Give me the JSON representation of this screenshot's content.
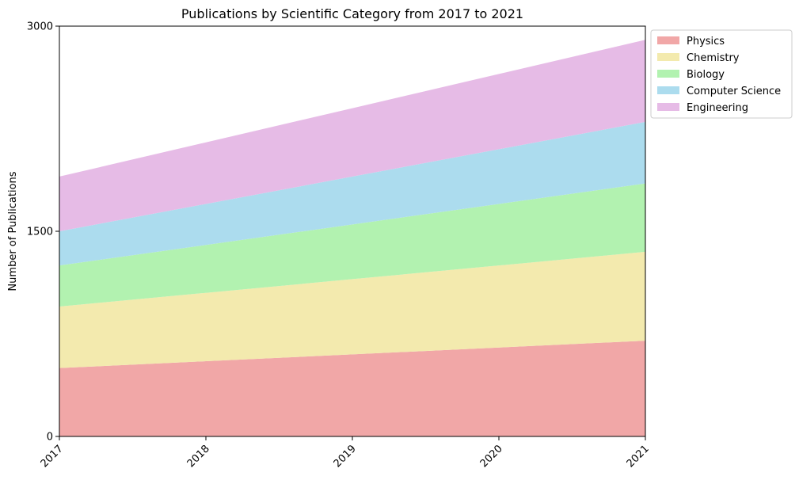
{
  "chart_data": {
    "type": "area",
    "stacked": true,
    "title": "Publications by Scientific Category from 2017 to 2021",
    "xlabel": "",
    "ylabel": "Number of Publications",
    "x": [
      "2017",
      "2018",
      "2019",
      "2020",
      "2021"
    ],
    "ylim": [
      0,
      3000
    ],
    "yticks": [
      "0",
      "1500",
      "3000"
    ],
    "grid": false,
    "legend_position": "upper right, outside plot",
    "series": [
      {
        "name": "Physics",
        "values": [
          500,
          550,
          600,
          650,
          700
        ],
        "color": "#f1a7a7"
      },
      {
        "name": "Chemistry",
        "values": [
          450,
          500,
          550,
          600,
          650
        ],
        "color": "#f3eaae"
      },
      {
        "name": "Biology",
        "values": [
          300,
          350,
          400,
          450,
          500
        ],
        "color": "#b2f2b0"
      },
      {
        "name": "Computer Science",
        "values": [
          250,
          300,
          350,
          400,
          450
        ],
        "color": "#acdcee"
      },
      {
        "name": "Engineering",
        "values": [
          400,
          450,
          500,
          550,
          600
        ],
        "color": "#e6bbe6"
      }
    ]
  }
}
